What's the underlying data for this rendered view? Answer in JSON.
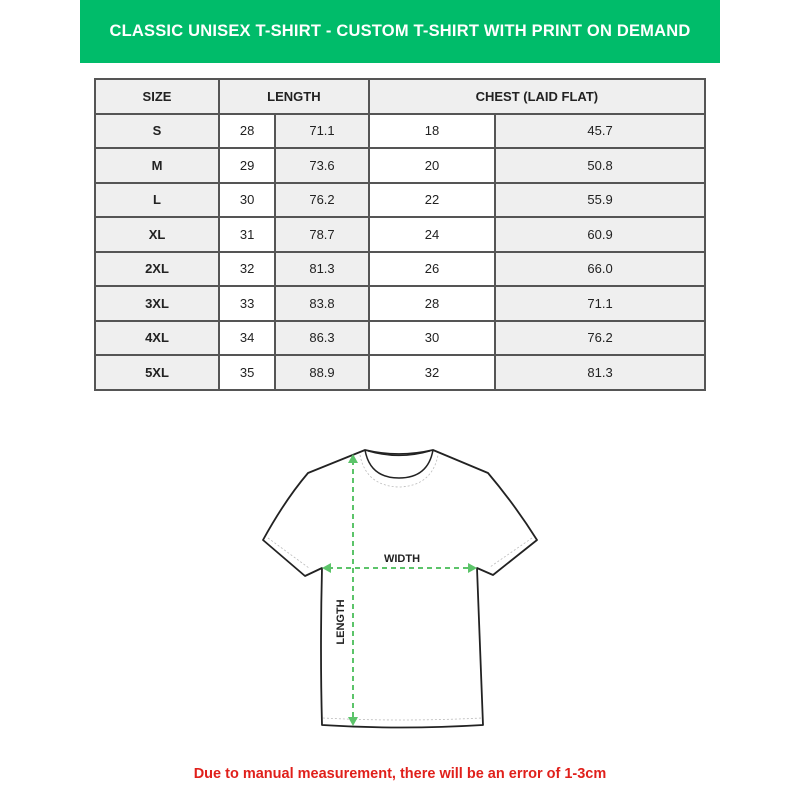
{
  "title": "CLASSIC UNISEX T-SHIRT - CUSTOM T-SHIRT WITH PRINT ON DEMAND",
  "table": {
    "headers": [
      "SIZE",
      "LENGTH",
      "CHEST (LAID FLAT)"
    ],
    "rows": [
      [
        "S",
        "28",
        "71.1",
        "18",
        "45.7"
      ],
      [
        "M",
        "29",
        "73.6",
        "20",
        "50.8"
      ],
      [
        "L",
        "30",
        "76.2",
        "22",
        "55.9"
      ],
      [
        "XL",
        "31",
        "78.7",
        "24",
        "60.9"
      ],
      [
        "2XL",
        "32",
        "81.3",
        "26",
        "66.0"
      ],
      [
        "3XL",
        "33",
        "83.8",
        "28",
        "71.1"
      ],
      [
        "4XL",
        "34",
        "86.3",
        "30",
        "76.2"
      ],
      [
        "5XL",
        "35",
        "88.9",
        "32",
        "81.3"
      ]
    ]
  },
  "diagram": {
    "width_label": "WIDTH",
    "length_label": "LENGTH",
    "arrow_color": "#5cc46a"
  },
  "footer": "Due to manual measurement, there will be an error of 1-3cm",
  "colors": {
    "banner": "#00bc6a",
    "footer_text": "#e0201b"
  }
}
